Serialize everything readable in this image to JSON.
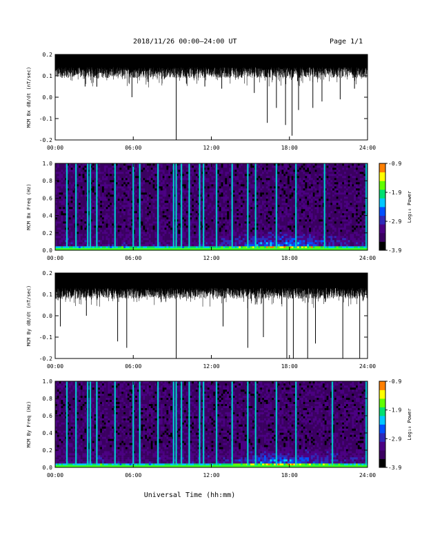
{
  "header": {
    "title": "2018/11/26  00:00–24:00 UT",
    "page": "Page 1/1"
  },
  "x_axis_label": "Universal Time (hh:mm)",
  "colorbar": {
    "label": "Log₁₀ Power",
    "ticks": [
      "-0.9",
      "-1.9",
      "-2.9",
      "-3.9"
    ],
    "colors": [
      "#000000",
      "#3a0060",
      "#4b0082",
      "#2f29b8",
      "#0050ff",
      "#00c8ff",
      "#00e070",
      "#60ff00",
      "#ffff00",
      "#ff8000",
      "#ff0000"
    ]
  },
  "chart_data": [
    {
      "type": "line",
      "ylabel": "MCM Bx dB/dt (nT/sec)",
      "xlim": [
        0,
        24
      ],
      "ylim": [
        -0.2,
        0.2
      ],
      "y_ticks": [
        "0.2",
        "0.1",
        "0.0",
        "-0.1",
        "-0.2"
      ],
      "x_ticks": [
        "00:00",
        "06:00",
        "12:00",
        "18:00",
        "24:00"
      ],
      "series": [
        {
          "upper_envelope": 0.2,
          "baseline_low": 0.11,
          "spikes": [
            {
              "x": 2.3,
              "y": 0.05
            },
            {
              "x": 3.2,
              "y": 0.05
            },
            {
              "x": 5.9,
              "y": 0.0
            },
            {
              "x": 9.3,
              "y": -0.2
            },
            {
              "x": 11.5,
              "y": 0.05
            },
            {
              "x": 12.8,
              "y": 0.04
            },
            {
              "x": 15.3,
              "y": 0.02
            },
            {
              "x": 16.3,
              "y": -0.12
            },
            {
              "x": 17.0,
              "y": -0.05
            },
            {
              "x": 17.7,
              "y": -0.13
            },
            {
              "x": 18.2,
              "y": -0.18
            },
            {
              "x": 18.7,
              "y": -0.06
            },
            {
              "x": 19.8,
              "y": -0.05
            },
            {
              "x": 20.5,
              "y": -0.02
            },
            {
              "x": 21.9,
              "y": -0.01
            },
            {
              "x": 23.0,
              "y": 0.04
            }
          ]
        }
      ]
    },
    {
      "type": "heatmap",
      "ylabel": "MCM Bx Freq (Hz)",
      "xlim": [
        0,
        24
      ],
      "ylim": [
        0,
        1.0
      ],
      "y_ticks": [
        "1.0",
        "0.8",
        "0.6",
        "0.4",
        "0.2",
        "0.0"
      ],
      "x_ticks": [
        "00:00",
        "06:00",
        "12:00",
        "18:00",
        "24:00"
      ],
      "color_range": [
        -3.9,
        -0.9
      ],
      "bright_columns": [
        0.9,
        1.6,
        2.5,
        2.7,
        3.2,
        4.6,
        6.0,
        6.5,
        7.9,
        9.1,
        9.3,
        9.7,
        10.3,
        11.1,
        11.4,
        12.4,
        13.6,
        14.8,
        15.4,
        17.0,
        18.5,
        20.7,
        23.9
      ]
    },
    {
      "type": "line",
      "ylabel": "MCM By dB/dt (nT/sec)",
      "xlim": [
        0,
        24
      ],
      "ylim": [
        -0.2,
        0.2
      ],
      "y_ticks": [
        "0.2",
        "0.1",
        "0.0",
        "-0.1",
        "-0.2"
      ],
      "x_ticks": [
        "00:00",
        "06:00",
        "12:00",
        "18:00",
        "24:00"
      ],
      "series": [
        {
          "upper_envelope": 0.2,
          "baseline_low": 0.1,
          "spikes": [
            {
              "x": 0.4,
              "y": -0.05
            },
            {
              "x": 2.4,
              "y": 0.0
            },
            {
              "x": 4.8,
              "y": -0.12
            },
            {
              "x": 5.5,
              "y": -0.15
            },
            {
              "x": 9.3,
              "y": -0.2
            },
            {
              "x": 12.9,
              "y": -0.05
            },
            {
              "x": 14.8,
              "y": -0.15
            },
            {
              "x": 16.0,
              "y": -0.1
            },
            {
              "x": 17.8,
              "y": -0.2
            },
            {
              "x": 18.3,
              "y": -0.2
            },
            {
              "x": 19.4,
              "y": -0.2
            },
            {
              "x": 20.0,
              "y": -0.13
            },
            {
              "x": 22.1,
              "y": -0.2
            },
            {
              "x": 23.4,
              "y": -0.2
            }
          ]
        }
      ]
    },
    {
      "type": "heatmap",
      "ylabel": "MCM By Freq (Hz)",
      "xlim": [
        0,
        24
      ],
      "ylim": [
        0,
        1.0
      ],
      "y_ticks": [
        "1.0",
        "0.8",
        "0.6",
        "0.4",
        "0.2",
        "0.0"
      ],
      "x_ticks": [
        "00:00",
        "06:00",
        "12:00",
        "18:00",
        "24:00"
      ],
      "color_range": [
        -3.9,
        -0.9
      ],
      "bright_columns": [
        0.9,
        1.6,
        2.5,
        2.7,
        3.2,
        4.6,
        6.0,
        6.5,
        7.9,
        9.1,
        9.3,
        9.7,
        10.3,
        11.1,
        11.4,
        12.4,
        13.6,
        14.8,
        15.4,
        17.0,
        18.5,
        21.3,
        23.9
      ]
    }
  ]
}
